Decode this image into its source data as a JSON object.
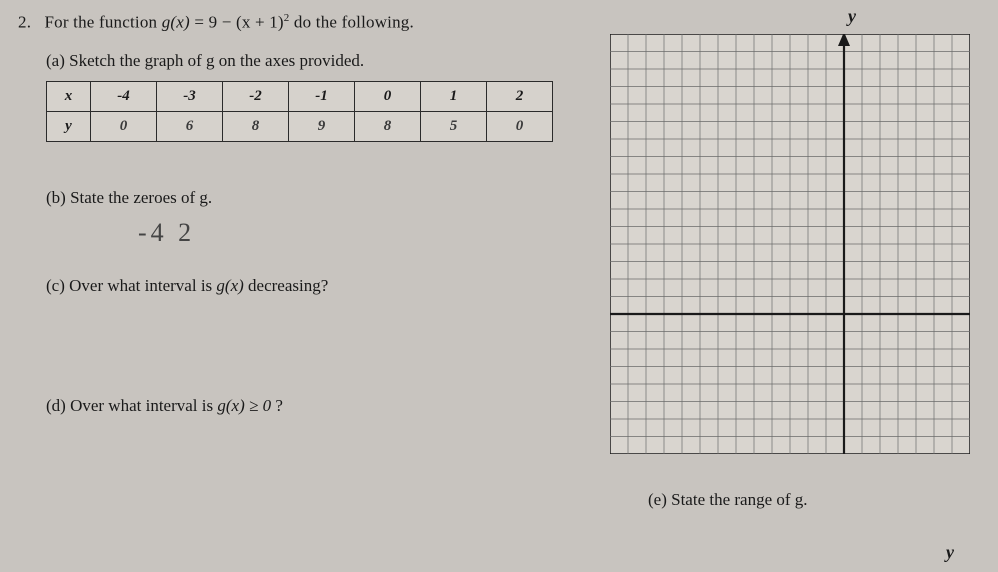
{
  "problem": {
    "number": "2.",
    "stem_prefix": "For the function ",
    "func_lhs": "g(x)",
    "eq": "= 9 − (x + 1)",
    "exp": "2",
    "stem_suffix": " do the following."
  },
  "parts": {
    "a": "(a) Sketch the graph of g on the axes provided.",
    "b": "(b) State the zeroes of g.",
    "c_prefix": "(c) Over what interval is ",
    "c_gx": "g(x)",
    "c_suffix": " decreasing?",
    "d_prefix": "(d) Over what interval is ",
    "d_gx": "g(x) ≥ 0",
    "d_suffix": "?",
    "e": "(e) State the range of g."
  },
  "table": {
    "row_label_x": "x",
    "row_label_y": "y",
    "x": [
      "-4",
      "-3",
      "-2",
      "-1",
      "0",
      "1",
      "2"
    ],
    "y": [
      "0",
      "6",
      "8",
      "9",
      "8",
      "5",
      "0"
    ]
  },
  "handwritten": {
    "zeros": "-4   2"
  },
  "axis": {
    "y_top": "y",
    "y_bottom": "y"
  },
  "grid": {
    "cols": 20,
    "rows": 24,
    "axis_col": 13,
    "axis_row": 16,
    "line_color": "#6a6a6a",
    "bg_color": "#d9d5cf",
    "axis_color": "#1a1a1a"
  }
}
